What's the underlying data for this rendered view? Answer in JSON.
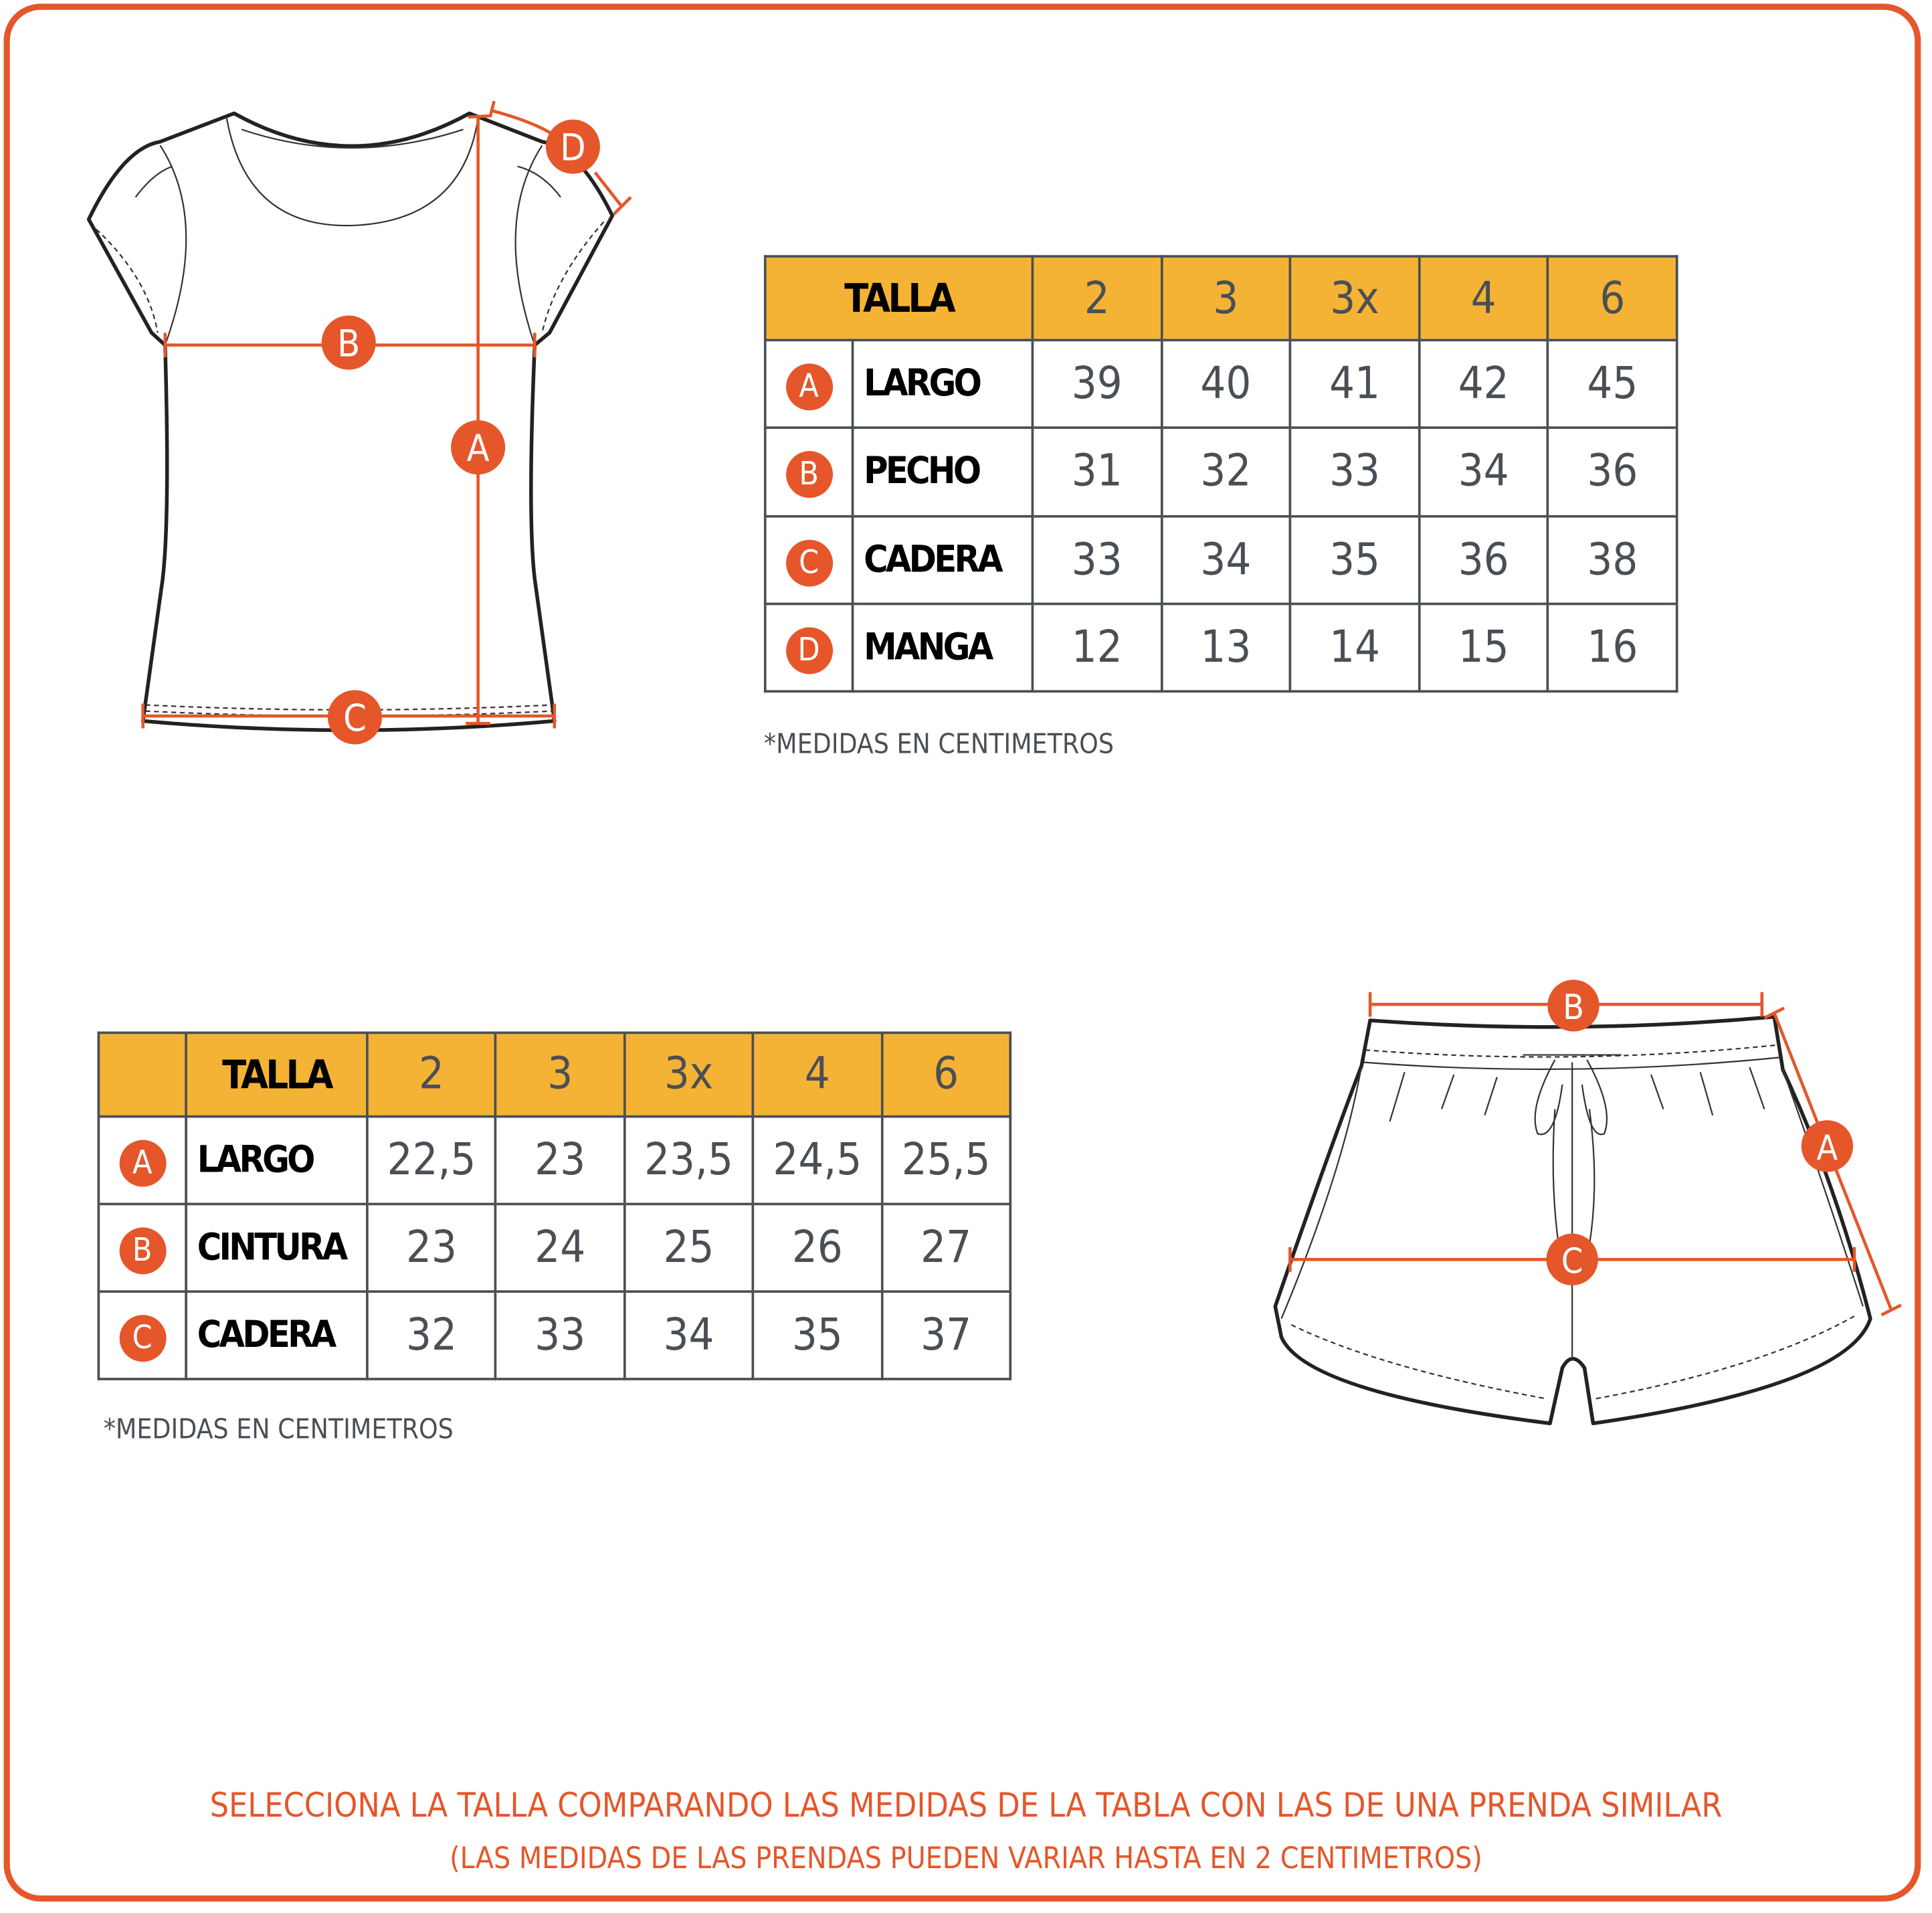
{
  "colors": {
    "accent": "#E5562A",
    "header": "#F5B335",
    "text": "#4a4f55"
  },
  "top_table": {
    "header_label": "TALLA",
    "sizes": [
      "2",
      "3",
      "3x",
      "4",
      "6"
    ],
    "rows": [
      {
        "key": "A",
        "label": "LARGO",
        "values": [
          "39",
          "40",
          "41",
          "42",
          "45"
        ]
      },
      {
        "key": "B",
        "label": "PECHO",
        "values": [
          "31",
          "32",
          "33",
          "34",
          "36"
        ]
      },
      {
        "key": "C",
        "label": "CADERA",
        "values": [
          "33",
          "34",
          "35",
          "36",
          "38"
        ]
      },
      {
        "key": "D",
        "label": "MANGA",
        "values": [
          "12",
          "13",
          "14",
          "15",
          "16"
        ]
      }
    ],
    "note": "*MEDIDAS EN CENTIMETROS"
  },
  "bottom_table": {
    "header_label": "TALLA",
    "sizes": [
      "2",
      "3",
      "3x",
      "4",
      "6"
    ],
    "rows": [
      {
        "key": "A",
        "label": "LARGO",
        "values": [
          "22,5",
          "23",
          "23,5",
          "24,5",
          "25,5"
        ]
      },
      {
        "key": "B",
        "label": "CINTURA",
        "values": [
          "23",
          "24",
          "25",
          "26",
          "27"
        ]
      },
      {
        "key": "C",
        "label": "CADERA",
        "values": [
          "32",
          "33",
          "34",
          "35",
          "37"
        ]
      }
    ],
    "note": "*MEDIDAS EN CENTIMETROS"
  },
  "shirt_markers": [
    "A",
    "B",
    "C",
    "D"
  ],
  "shorts_markers": [
    "A",
    "B",
    "C"
  ],
  "footer": {
    "line1": "SELECCIONA LA TALLA COMPARANDO LAS MEDIDAS DE LA TABLA CON LAS DE UNA PRENDA SIMILAR",
    "line2": "(LAS MEDIDAS DE LAS PRENDAS PUEDEN VARIAR HASTA EN 2 CENTIMETROS)"
  }
}
